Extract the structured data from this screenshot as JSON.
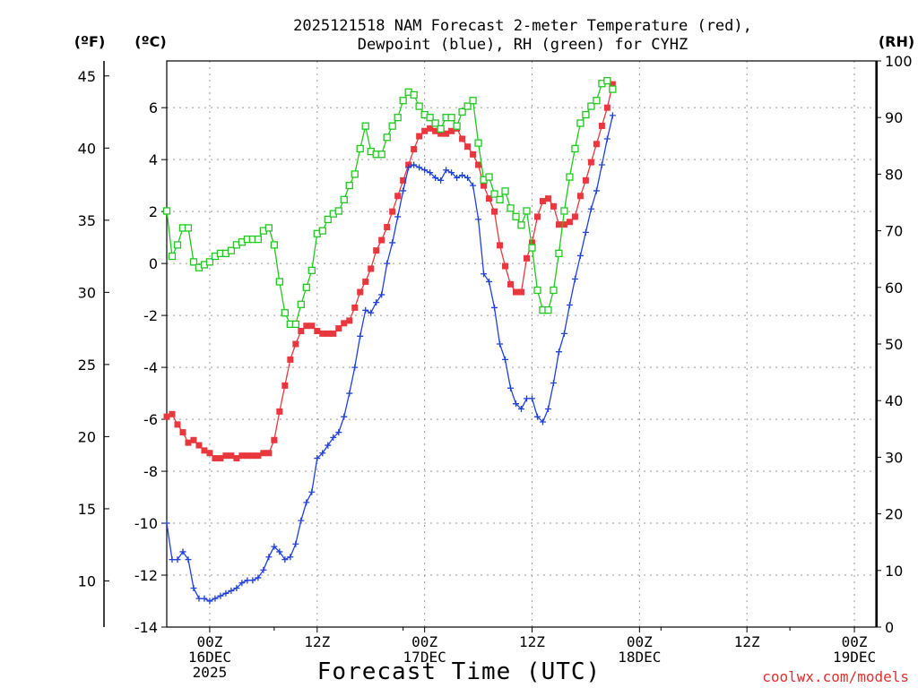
{
  "chart_data": {
    "type": "line",
    "title_line1": "2025121518 NAM Forecast 2-meter Temperature (red),",
    "title_line2": "Dewpoint (blue), RH (green) for CYHZ",
    "left_outer_unit": "(ºF)",
    "left_inner_unit": "(ºC)",
    "right_unit": "(RH)",
    "xlabel": "Forecast Time (UTC)",
    "credit": "coolwx.com/models",
    "x_range_hours": [
      18,
      84
    ],
    "c_range": [
      -14,
      7.8
    ],
    "rh_range": [
      0,
      100
    ],
    "f_ticks": [
      "10",
      "15",
      "20",
      "25",
      "30",
      "35",
      "40",
      "45"
    ],
    "c_ticks": [
      "-14",
      "-12",
      "-10",
      "-8",
      "-6",
      "-4",
      "-2",
      "0",
      "2",
      "4",
      "6"
    ],
    "rh_ticks": [
      "0",
      "10",
      "20",
      "30",
      "40",
      "50",
      "60",
      "70",
      "80",
      "90",
      "100"
    ],
    "x_ticks": [
      {
        "hour": 22,
        "l1": "00Z",
        "l2": "16DEC",
        "l3": "2025"
      },
      {
        "hour": 32,
        "l1": "12Z",
        "l2": "",
        "l3": ""
      },
      {
        "hour": 42,
        "l1": "00Z",
        "l2": "17DEC",
        "l3": ""
      },
      {
        "hour": 52,
        "l1": "12Z",
        "l2": "",
        "l3": ""
      },
      {
        "hour": 62,
        "l1": "00Z",
        "l2": "18DEC",
        "l3": ""
      },
      {
        "hour": 72,
        "l1": "12Z",
        "l2": "",
        "l3": ""
      },
      {
        "hour": 82,
        "l1": "00Z",
        "l2": "19DEC",
        "l3": ""
      }
    ],
    "series": [
      {
        "name": "2-meter Temperature (ºC)",
        "color": "#e8383d",
        "marker": "filled-square",
        "axis": "celsius",
        "points": [
          [
            18,
            -5.9
          ],
          [
            18.5,
            -5.8
          ],
          [
            19,
            -6.2
          ],
          [
            19.5,
            -6.5
          ],
          [
            20,
            -6.9
          ],
          [
            20.5,
            -6.8
          ],
          [
            21,
            -7.0
          ],
          [
            21.5,
            -7.2
          ],
          [
            22,
            -7.3
          ],
          [
            22.5,
            -7.5
          ],
          [
            23,
            -7.5
          ],
          [
            23.5,
            -7.4
          ],
          [
            24,
            -7.4
          ],
          [
            24.5,
            -7.5
          ],
          [
            25,
            -7.4
          ],
          [
            25.5,
            -7.4
          ],
          [
            26,
            -7.4
          ],
          [
            26.5,
            -7.4
          ],
          [
            27,
            -7.3
          ],
          [
            27.5,
            -7.3
          ],
          [
            28,
            -6.8
          ],
          [
            28.5,
            -5.7
          ],
          [
            29,
            -4.7
          ],
          [
            29.5,
            -3.7
          ],
          [
            30,
            -3.1
          ],
          [
            30.5,
            -2.6
          ],
          [
            31,
            -2.4
          ],
          [
            31.5,
            -2.4
          ],
          [
            32,
            -2.6
          ],
          [
            32.5,
            -2.7
          ],
          [
            33,
            -2.7
          ],
          [
            33.5,
            -2.7
          ],
          [
            34,
            -2.5
          ],
          [
            34.5,
            -2.3
          ],
          [
            35,
            -2.2
          ],
          [
            35.5,
            -1.7
          ],
          [
            36,
            -1.1
          ],
          [
            36.5,
            -0.7
          ],
          [
            37,
            -0.2
          ],
          [
            37.5,
            0.5
          ],
          [
            38,
            0.9
          ],
          [
            38.5,
            1.4
          ],
          [
            39,
            2.0
          ],
          [
            39.5,
            2.6
          ],
          [
            40,
            3.2
          ],
          [
            40.5,
            3.8
          ],
          [
            41,
            4.4
          ],
          [
            41.5,
            4.9
          ],
          [
            42,
            5.1
          ],
          [
            42.5,
            5.2
          ],
          [
            43,
            5.1
          ],
          [
            43.5,
            5.0
          ],
          [
            44,
            5.0
          ],
          [
            44.5,
            5.1
          ],
          [
            45,
            5.2
          ],
          [
            45.5,
            4.8
          ],
          [
            46,
            4.5
          ],
          [
            46.5,
            4.2
          ],
          [
            47,
            3.8
          ],
          [
            47.5,
            3.0
          ],
          [
            48,
            2.5
          ],
          [
            48.5,
            2.0
          ],
          [
            49,
            0.7
          ],
          [
            49.5,
            -0.1
          ],
          [
            50,
            -0.8
          ],
          [
            50.5,
            -1.1
          ],
          [
            51,
            -1.1
          ],
          [
            51.5,
            0.2
          ],
          [
            52,
            0.8
          ],
          [
            52.5,
            1.8
          ],
          [
            53,
            2.4
          ],
          [
            53.5,
            2.5
          ],
          [
            54,
            2.2
          ],
          [
            54.5,
            1.5
          ],
          [
            55,
            1.5
          ],
          [
            55.5,
            1.6
          ],
          [
            56,
            1.8
          ],
          [
            56.5,
            2.6
          ],
          [
            57,
            3.2
          ],
          [
            57.5,
            3.9
          ],
          [
            58,
            4.6
          ],
          [
            58.5,
            5.3
          ],
          [
            59,
            6.0
          ],
          [
            59.5,
            6.9
          ]
        ]
      },
      {
        "name": "Dewpoint (ºC)",
        "color": "#2040e0",
        "marker": "plus",
        "axis": "celsius",
        "points": [
          [
            18,
            -10.0
          ],
          [
            18.5,
            -11.4
          ],
          [
            19,
            -11.4
          ],
          [
            19.5,
            -11.1
          ],
          [
            20,
            -11.4
          ],
          [
            20.5,
            -12.5
          ],
          [
            21,
            -12.9
          ],
          [
            21.5,
            -12.9
          ],
          [
            22,
            -13.0
          ],
          [
            22.5,
            -12.9
          ],
          [
            23,
            -12.8
          ],
          [
            23.5,
            -12.7
          ],
          [
            24,
            -12.6
          ],
          [
            24.5,
            -12.5
          ],
          [
            25,
            -12.3
          ],
          [
            25.5,
            -12.2
          ],
          [
            26,
            -12.2
          ],
          [
            26.5,
            -12.1
          ],
          [
            27,
            -11.8
          ],
          [
            27.5,
            -11.3
          ],
          [
            28,
            -10.9
          ],
          [
            28.5,
            -11.1
          ],
          [
            29,
            -11.4
          ],
          [
            29.5,
            -11.3
          ],
          [
            30,
            -10.8
          ],
          [
            30.5,
            -9.9
          ],
          [
            31,
            -9.2
          ],
          [
            31.5,
            -8.8
          ],
          [
            32,
            -7.5
          ],
          [
            32.5,
            -7.3
          ],
          [
            33,
            -7.0
          ],
          [
            33.5,
            -6.7
          ],
          [
            34,
            -6.5
          ],
          [
            34.5,
            -5.9
          ],
          [
            35,
            -5.0
          ],
          [
            35.5,
            -4.0
          ],
          [
            36,
            -2.8
          ],
          [
            36.5,
            -1.8
          ],
          [
            37,
            -1.9
          ],
          [
            37.5,
            -1.5
          ],
          [
            38,
            -1.2
          ],
          [
            38.5,
            0.0
          ],
          [
            39,
            0.8
          ],
          [
            39.5,
            1.8
          ],
          [
            40,
            2.8
          ],
          [
            40.5,
            3.7
          ],
          [
            41,
            3.8
          ],
          [
            41.5,
            3.7
          ],
          [
            42,
            3.6
          ],
          [
            42.5,
            3.5
          ],
          [
            43,
            3.3
          ],
          [
            43.5,
            3.2
          ],
          [
            44,
            3.6
          ],
          [
            44.5,
            3.5
          ],
          [
            45,
            3.3
          ],
          [
            45.5,
            3.4
          ],
          [
            46,
            3.3
          ],
          [
            46.5,
            3.0
          ],
          [
            47,
            1.7
          ],
          [
            47.5,
            -0.4
          ],
          [
            48,
            -0.7
          ],
          [
            48.5,
            -1.7
          ],
          [
            49,
            -3.1
          ],
          [
            49.5,
            -3.7
          ],
          [
            50,
            -4.8
          ],
          [
            50.5,
            -5.4
          ],
          [
            51,
            -5.6
          ],
          [
            51.5,
            -5.2
          ],
          [
            52,
            -5.2
          ],
          [
            52.5,
            -5.9
          ],
          [
            53,
            -6.1
          ],
          [
            53.5,
            -5.6
          ],
          [
            54,
            -4.6
          ],
          [
            54.5,
            -3.4
          ],
          [
            55,
            -2.7
          ],
          [
            55.5,
            -1.6
          ],
          [
            56,
            -0.6
          ],
          [
            56.5,
            0.3
          ],
          [
            57,
            1.2
          ],
          [
            57.5,
            2.1
          ],
          [
            58,
            2.8
          ],
          [
            58.5,
            3.8
          ],
          [
            59,
            4.8
          ],
          [
            59.5,
            5.7
          ]
        ]
      },
      {
        "name": "RH (%)",
        "color": "#20c820",
        "marker": "open-square",
        "axis": "rh",
        "points": [
          [
            18,
            73.5
          ],
          [
            18.5,
            65.5
          ],
          [
            19,
            67.5
          ],
          [
            19.5,
            70.5
          ],
          [
            20,
            70.5
          ],
          [
            20.5,
            64.5
          ],
          [
            21,
            63.5
          ],
          [
            21.5,
            64.0
          ],
          [
            22,
            64.5
          ],
          [
            22.5,
            65.5
          ],
          [
            23,
            66.0
          ],
          [
            23.5,
            66.0
          ],
          [
            24,
            66.5
          ],
          [
            24.5,
            67.5
          ],
          [
            25,
            68.0
          ],
          [
            25.5,
            68.5
          ],
          [
            26,
            68.5
          ],
          [
            26.5,
            68.5
          ],
          [
            27,
            70.0
          ],
          [
            27.5,
            70.5
          ],
          [
            28,
            67.5
          ],
          [
            28.5,
            61.0
          ],
          [
            29,
            55.5
          ],
          [
            29.5,
            53.5
          ],
          [
            30,
            53.5
          ],
          [
            30.5,
            57.0
          ],
          [
            31,
            60.0
          ],
          [
            31.5,
            63.0
          ],
          [
            32,
            69.5
          ],
          [
            32.5,
            70.0
          ],
          [
            33,
            72.0
          ],
          [
            33.5,
            73.0
          ],
          [
            34,
            73.5
          ],
          [
            34.5,
            75.5
          ],
          [
            35,
            78.0
          ],
          [
            35.5,
            80.0
          ],
          [
            36,
            84.5
          ],
          [
            36.5,
            88.5
          ],
          [
            37,
            84.0
          ],
          [
            37.5,
            83.5
          ],
          [
            38,
            83.5
          ],
          [
            38.5,
            86.5
          ],
          [
            39,
            88.5
          ],
          [
            39.5,
            90.0
          ],
          [
            40,
            93.0
          ],
          [
            40.5,
            94.5
          ],
          [
            41,
            94.0
          ],
          [
            41.5,
            92.0
          ],
          [
            42,
            90.5
          ],
          [
            42.5,
            90.0
          ],
          [
            43,
            89.0
          ],
          [
            43.5,
            88.0
          ],
          [
            44,
            90.0
          ],
          [
            44.5,
            90.0
          ],
          [
            45,
            88.5
          ],
          [
            45.5,
            91.0
          ],
          [
            46,
            92.0
          ],
          [
            46.5,
            93.0
          ],
          [
            47,
            85.5
          ],
          [
            47.5,
            79.0
          ],
          [
            48,
            79.5
          ],
          [
            48.5,
            76.5
          ],
          [
            49,
            75.5
          ],
          [
            49.5,
            77.0
          ],
          [
            50,
            74.0
          ],
          [
            50.5,
            72.5
          ],
          [
            51,
            71.0
          ],
          [
            51.5,
            73.5
          ],
          [
            52,
            67.0
          ],
          [
            52.5,
            59.5
          ],
          [
            53,
            56.0
          ],
          [
            53.5,
            56.0
          ],
          [
            54,
            59.5
          ],
          [
            54.5,
            66.0
          ],
          [
            55,
            73.5
          ],
          [
            55.5,
            79.5
          ],
          [
            56,
            84.5
          ],
          [
            56.5,
            89.0
          ],
          [
            57,
            90.5
          ],
          [
            57.5,
            92.0
          ],
          [
            58,
            93.0
          ],
          [
            58.5,
            96.0
          ],
          [
            59,
            96.5
          ],
          [
            59.5,
            95.0
          ]
        ]
      }
    ]
  }
}
